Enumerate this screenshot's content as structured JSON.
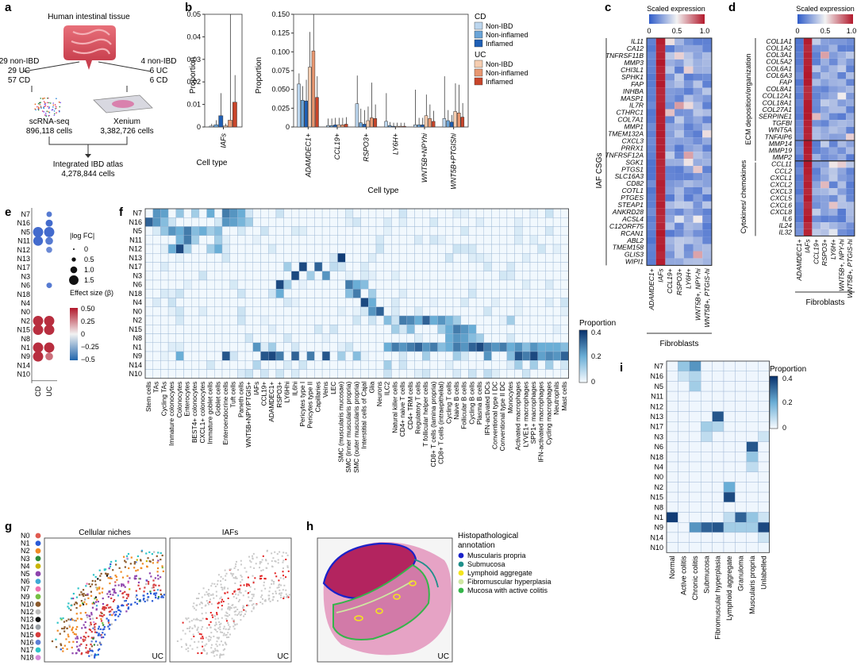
{
  "panel_letters": [
    "a",
    "b",
    "c",
    "d",
    "e",
    "f",
    "g",
    "h",
    "i"
  ],
  "panel_a": {
    "tissue": "Human intestinal tissue",
    "left_cohort": [
      "29 non-IBD",
      "29 UC",
      "57 CD"
    ],
    "right_cohort": [
      "4 non-IBD",
      "6 UC",
      "6 CD"
    ],
    "left_assay": [
      "scRNA-seq",
      "896,118 cells"
    ],
    "right_assay": [
      "Xenium",
      "3,382,726 cells"
    ],
    "atlas": [
      "Integrated IBD atlas",
      "4,278,844 cells"
    ]
  },
  "panel_b": {
    "ylabel": "Proportion",
    "xlabel": "Cell type",
    "legend_cd_title": "CD",
    "legend_uc_title": "UC",
    "legend_items": [
      "Non-IBD",
      "Non-inflamed",
      "Inflamed"
    ],
    "colors_cd": [
      "#bcd6ee",
      "#6aa4d8",
      "#1f5fb5"
    ],
    "colors_uc": [
      "#f6cdb0",
      "#e89770",
      "#c8452a"
    ],
    "colors": {
      "box": "#333333",
      "whisker": "#222222"
    }
  },
  "chart_data": [
    {
      "type": "bar",
      "categories": [
        "IAFs"
      ],
      "series_groups": [
        "CD Non-IBD",
        "CD Non-inflamed",
        "CD Inflamed",
        "UC Non-IBD",
        "UC Non-inflamed",
        "UC Inflamed"
      ],
      "values": [
        [
          0.0004,
          0.001,
          0.005,
          0.0005,
          0.003,
          0.011
        ]
      ],
      "errors": [
        [
          0.001,
          0.002,
          0.01,
          0.001,
          0.05,
          0.012
        ]
      ],
      "ylim": [
        0,
        0.05
      ],
      "yticks": [
        "0",
        "0.01",
        "0.02",
        "0.03",
        "0.04",
        "0.05"
      ],
      "xlabel": "Cell type",
      "ylabel": "Proportion"
    },
    {
      "type": "bar",
      "categories": [
        "ADAMDEC1+",
        "CCL19+",
        "RSPO3+",
        "LY6H+",
        "WNT5B+NPYhi",
        "WNT5B+PTGIShi"
      ],
      "series_groups": [
        "CD Non-IBD",
        "CD Non-inflamed",
        "CD Inflamed",
        "UC Non-IBD",
        "UC Non-inflamed",
        "UC Inflamed"
      ],
      "values": [
        [
          0.061,
          0.038,
          0.037,
          0.085,
          0.108,
          0.042
        ],
        [
          0.002,
          0.002,
          0.003,
          0.003,
          0.003,
          0.004
        ],
        [
          0.033,
          0.006,
          0.004,
          0.009,
          0.013,
          0.012
        ],
        [
          0.008,
          0.002,
          0.001,
          0.001,
          0.001,
          0.001
        ],
        [
          0.003,
          0.003,
          0.003,
          0.016,
          0.012,
          0.008
        ],
        [
          0.012,
          0.009,
          0.007,
          0.022,
          0.02,
          0.014
        ]
      ],
      "errors": [
        [
          0.015,
          0.02,
          0.03,
          0.05,
          0.06,
          0.03
        ],
        [
          0.01,
          0.01,
          0.01,
          0.01,
          0.01,
          0.01
        ],
        [
          0.04,
          0.02,
          0.02,
          0.02,
          0.05,
          0.02
        ],
        [
          0.04,
          0.005,
          0.005,
          0.005,
          0.005,
          0.005
        ],
        [
          0.05,
          0.01,
          0.01,
          0.03,
          0.02,
          0.015
        ],
        [
          0.06,
          0.015,
          0.01,
          0.04,
          0.04,
          0.02
        ]
      ],
      "ylim": [
        0,
        0.16
      ],
      "yticks": [
        "0",
        "0.025",
        "0.050",
        "0.075",
        "0.100",
        "0.125",
        "0.150"
      ],
      "xlabel": "Cell type",
      "ylabel": "Proportion"
    },
    {
      "type": "heatmap",
      "panel": "c",
      "title": "Scaled expression",
      "colorbar_ticks": [
        "0",
        "0.5",
        "1.0"
      ],
      "group_label": "IAF CSGs",
      "x_group_label": "Fibroblasts",
      "columns": [
        "ADAMDEC1+",
        "IAFs",
        "CCL19+",
        "RSPO3+",
        "LY6H+",
        "WNT5B+, NPY-hi",
        "WNT5B+, PTGIS-hi"
      ],
      "rows": [
        "IL11",
        "CA12",
        "TNFRSF11B",
        "MMP3",
        "CHI3L1",
        "SPHK1",
        "FAP",
        "INHBA",
        "MASP1",
        "IL7R",
        "CTHRC1",
        "COL7A1",
        "MMP1",
        "TMEM132A",
        "CXCL3",
        "PRRX1",
        "TNFRSF12A",
        "SGK1",
        "PTGS1",
        "SLC16A3",
        "CD82",
        "COTL1",
        "PTGES",
        "STEAP1",
        "ANKRD28",
        "ACSL4",
        "C12ORF75",
        "RCAN1",
        "ABL2",
        "TMEM158",
        "GLIS3",
        "WIPI1"
      ]
    },
    {
      "type": "heatmap",
      "panel": "d",
      "title": "Scaled expression",
      "colorbar_ticks": [
        "0",
        "0.5",
        "1.0"
      ],
      "group_labels": [
        "ECM deposition/organization",
        "Cytokines/ chemokines"
      ],
      "x_group_label": "Fibroblasts",
      "columns": [
        "ADAMDEC1+",
        "IAFs",
        "CCL19+",
        "RSPO3+",
        "LY6H+",
        "WNT5B+, NPY-hi",
        "WNT5B+, PTGIS-hi"
      ],
      "rows": [
        "COL1A1",
        "COL1A2",
        "COL3A1",
        "COL5A2",
        "COL6A1",
        "COL6A3",
        "FAP",
        "COL8A1",
        "COL12A1",
        "COL18A1",
        "COL27A1",
        "SERPINE1",
        "TGFBI",
        "WNT5A",
        "TNFAIP6",
        "MMP14",
        "MMP19",
        "MMP2",
        "CCL11",
        "CCL2",
        "CXCL1",
        "CXCL2",
        "CXCL3",
        "CXCL5",
        "CXCL6",
        "CXCL8",
        "IL6",
        "IL24",
        "IL32"
      ]
    },
    {
      "type": "scatter",
      "panel": "e",
      "rows": [
        "N7",
        "N16",
        "N5",
        "N11",
        "N12",
        "N13",
        "N17",
        "N3",
        "N6",
        "N18",
        "N4",
        "N0",
        "N2",
        "N15",
        "N8",
        "N1",
        "N9",
        "N14",
        "N10"
      ],
      "columns": [
        "CD",
        "UC"
      ],
      "dots": [
        {
          "row": "N7",
          "col": "UC",
          "size": 0.6,
          "beta": -0.4
        },
        {
          "row": "N16",
          "col": "UC",
          "size": 0.9,
          "beta": -0.45
        },
        {
          "row": "N5",
          "col": "CD",
          "size": 1.5,
          "beta": -0.45
        },
        {
          "row": "N5",
          "col": "UC",
          "size": 1.5,
          "beta": -0.45
        },
        {
          "row": "N11",
          "col": "CD",
          "size": 1.4,
          "beta": -0.45
        },
        {
          "row": "N11",
          "col": "UC",
          "size": 1.0,
          "beta": -0.4
        },
        {
          "row": "N12",
          "col": "UC",
          "size": 0.7,
          "beta": -0.35
        },
        {
          "row": "N6",
          "col": "UC",
          "size": 0.6,
          "beta": -0.4
        },
        {
          "row": "N2",
          "col": "CD",
          "size": 1.5,
          "beta": 0.45
        },
        {
          "row": "N2",
          "col": "UC",
          "size": 1.5,
          "beta": 0.45
        },
        {
          "row": "N15",
          "col": "CD",
          "size": 1.5,
          "beta": 0.45
        },
        {
          "row": "N15",
          "col": "UC",
          "size": 1.5,
          "beta": 0.45
        },
        {
          "row": "N1",
          "col": "CD",
          "size": 1.5,
          "beta": 0.45
        },
        {
          "row": "N1",
          "col": "UC",
          "size": 1.5,
          "beta": 0.45
        },
        {
          "row": "N9",
          "col": "CD",
          "size": 1.5,
          "beta": 0.45
        },
        {
          "row": "N9",
          "col": "UC",
          "size": 1.0,
          "beta": 0.3
        }
      ],
      "size_legend_title": "|log FC|",
      "size_legend": [
        "0",
        "0.5",
        "1.0",
        "1.5"
      ],
      "color_legend_title": "Effect size (β)",
      "color_legend_ticks": [
        "0.50",
        "0.25",
        "0",
        "−0.25",
        "−0.5"
      ]
    },
    {
      "type": "heatmap",
      "panel": "f",
      "colorbar_title": "Proportion",
      "colorbar_ticks": [
        "0.4",
        "0.2",
        "0"
      ],
      "rows": [
        "N7",
        "N16",
        "N5",
        "N11",
        "N12",
        "N13",
        "N17",
        "N3",
        "N6",
        "N18",
        "N4",
        "N0",
        "N2",
        "N15",
        "N8",
        "N1",
        "N9",
        "N14",
        "N10"
      ],
      "columns": [
        "Stem cells",
        "TAs",
        "Cycling TAs",
        "Immature colonocytes",
        "Colonocytes",
        "Enterocytes",
        "BEST4+ colonocytes",
        "CXCL1+ colonocytes",
        "Immature goblet cells",
        "Goblet cells",
        "Enteroendocrine cells",
        "Tuft cells",
        "Paneth cells",
        "WNT5B+NPY/PTGIS+",
        "IAFs",
        "CCL19+",
        "ADAMDEC1+",
        "RSPO3+",
        "LY6Hhi",
        "IL6hi",
        "Pericytes type I",
        "Pericytes type II",
        "Capillaries",
        "Veins",
        "LEC",
        "SMC (muscularis mucosae)",
        "SMC (inner muscularis propria)",
        "SMC (outer muscularis propria)",
        "Interstitial cells of Cajal",
        "Glia",
        "Neurons",
        "ILC2",
        "Natural killer cells",
        "CD4+ naive T cells",
        "CD4+ TRM cells",
        "Regulatory T cells",
        "T follicular helper cells",
        "CD8+ T cells (lamina propria)",
        "CD8+ T cells (intraepithelial)",
        "Cycling T cells",
        "Naive B cells",
        "Follicular B cells",
        "Cycling B cells",
        "Plasma B cells",
        "IFN-activated DCs",
        "Conventional type I DC",
        "Conventional type II DC",
        "Monocytes",
        "Activated macrophages",
        "LYVE1+ macrophages",
        "SPP1+ macrophages",
        "IFN-activated macrophages",
        "Cycling macrophages",
        "Neutrophils",
        "Mast cells"
      ]
    },
    {
      "type": "heatmap",
      "panel": "i",
      "colorbar_title": "Proportion",
      "colorbar_ticks": [
        "0.4",
        "0.2",
        "0"
      ],
      "rows": [
        "N7",
        "N16",
        "N5",
        "N11",
        "N12",
        "N13",
        "N17",
        "N3",
        "N6",
        "N18",
        "N4",
        "N0",
        "N2",
        "N15",
        "N8",
        "N1",
        "N9",
        "N14",
        "N10"
      ],
      "columns": [
        "Normal",
        "Active colitis",
        "Chronic colitis",
        "Submucosa",
        "Fibromuscular hyperplasia",
        "Lymphoid aggregate",
        "Granuloma",
        "Muscularis propria",
        "Unlabelled"
      ]
    }
  ],
  "panel_g": {
    "niches": [
      "N0",
      "N1",
      "N2",
      "N3",
      "N4",
      "N5",
      "N6",
      "N7",
      "N9",
      "N10",
      "N12",
      "N13",
      "N14",
      "N15",
      "N16",
      "N17",
      "N18"
    ],
    "niche_colors": [
      "#e05a4f",
      "#2a5bd7",
      "#f08a24",
      "#2e8b3a",
      "#c9b400",
      "#8e44ad",
      "#3fa9d6",
      "#ef6fae",
      "#76c043",
      "#8b5a2b",
      "#bcbcbc",
      "#111111",
      "#9aa0a6",
      "#d63c3c",
      "#5c7fd6",
      "#2ec4c8",
      "#d48ad8"
    ],
    "left_title": "Cellular niches",
    "right_title": "IAFs",
    "corner_label": "UC"
  },
  "panel_h": {
    "legend_title": "Histopathological annotation",
    "legend_items": [
      "Muscularis propria",
      "Submucosa",
      "Lymphoid aggregate",
      "Fibromuscular hyperplasia",
      "Mucosa with active colitis"
    ],
    "legend_colors": [
      "#1a22c9",
      "#1f8f8a",
      "#f4e41d",
      "#cfe7a2",
      "#35b54a"
    ],
    "corner_label": "UC"
  }
}
